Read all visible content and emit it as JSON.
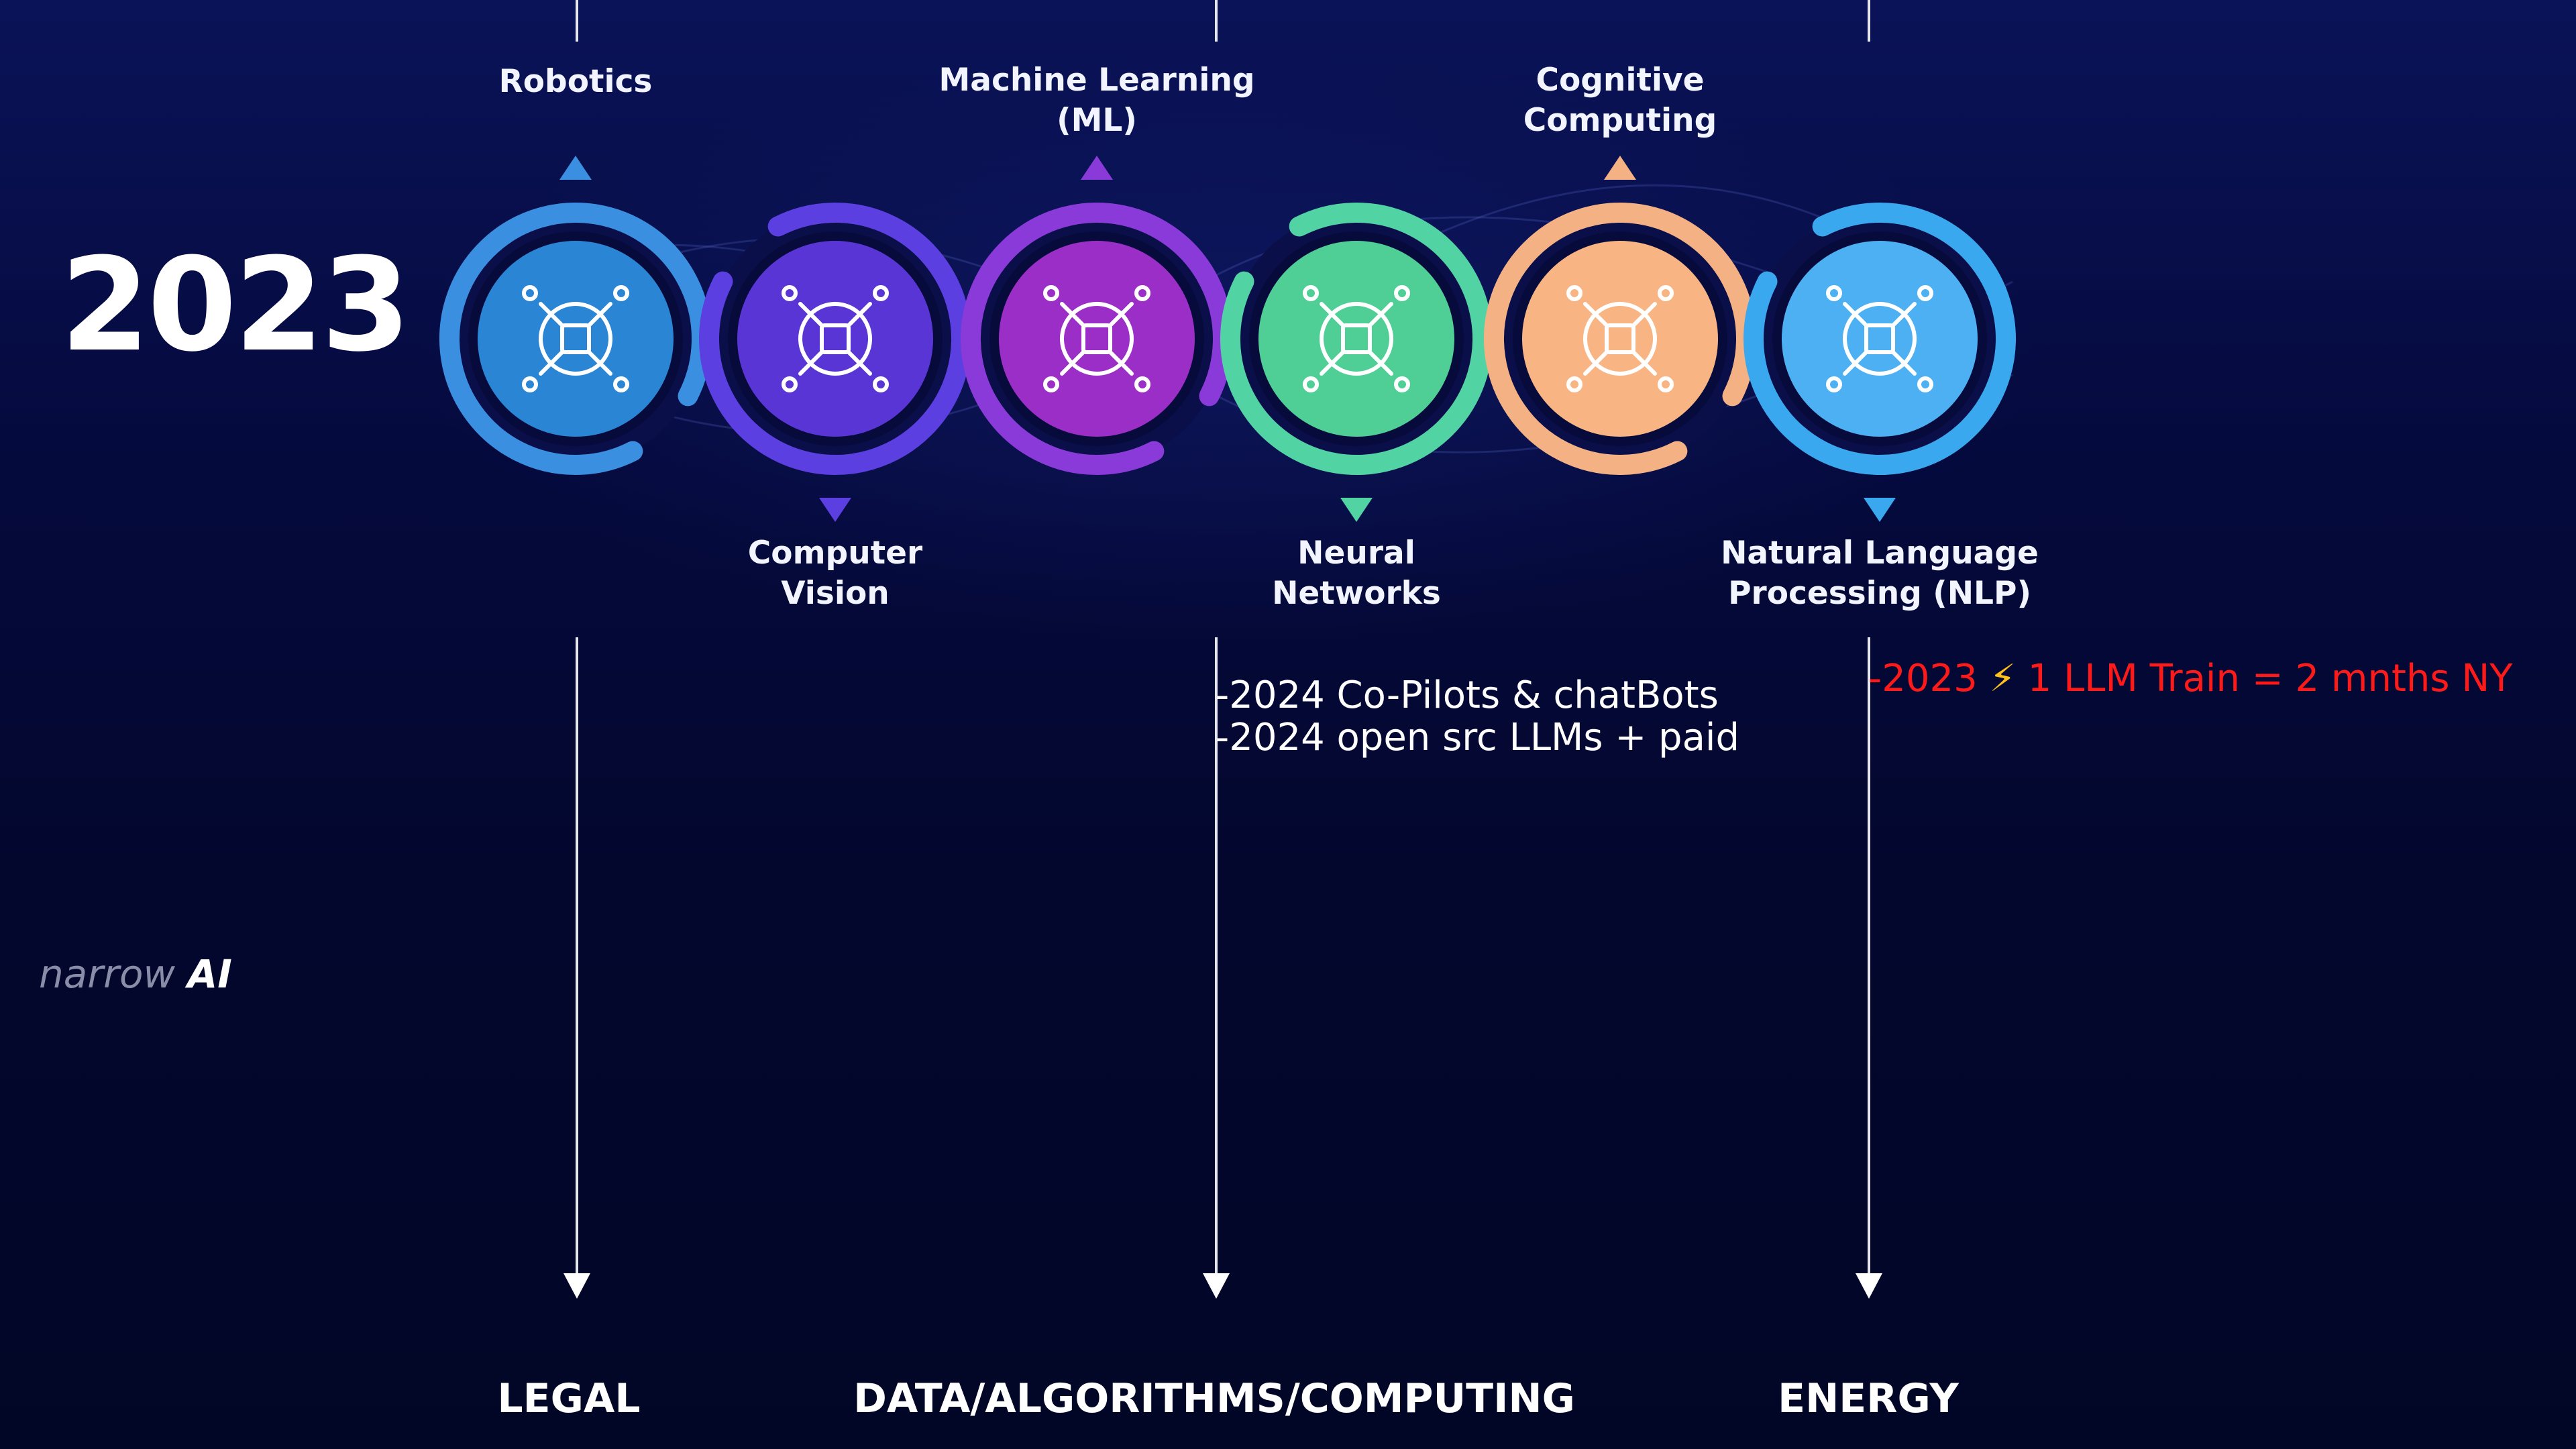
{
  "year": "2023",
  "stages": [
    {
      "label_lines": [
        "Robotics"
      ],
      "position": "top",
      "ring_color": "#3a8fe0",
      "fill_color": "#2a86d4",
      "icon": "head-gear-chip-icon"
    },
    {
      "label_lines": [
        "Computer",
        "Vision"
      ],
      "position": "bottom",
      "ring_color": "#5b3fe0",
      "fill_color": "#5a35d6",
      "icon": "eye-chip-icon"
    },
    {
      "label_lines": [
        "Machine Learning",
        "(ML)"
      ],
      "position": "top",
      "ring_color": "#8a3ad8",
      "fill_color": "#9b2ec6",
      "icon": "brain-gear-icon"
    },
    {
      "label_lines": [
        "Neural",
        "Networks"
      ],
      "position": "bottom",
      "ring_color": "#52d3a4",
      "fill_color": "#4fcf96",
      "icon": "network-nodes-icon"
    },
    {
      "label_lines": [
        "Cognitive",
        "Computing"
      ],
      "position": "top",
      "ring_color": "#f4b183",
      "fill_color": "#f8b482",
      "icon": "brain-mesh-icon"
    },
    {
      "label_lines": [
        "Natural Language",
        "Processing (NLP)"
      ],
      "position": "bottom",
      "ring_color": "#3aa8ee",
      "fill_color": "#4cb0f2",
      "icon": "microphone-wave-icon"
    }
  ],
  "notes": {
    "data_1": "-2024 Co-Pilots & chatBots",
    "data_2": "-2024 open src LLMs + paid",
    "energy_prefix": "-2023 ",
    "energy_emoji": "⚡",
    "energy_rest": " 1 LLM Train = 2 mnths NY"
  },
  "narrow_ai": {
    "word1": "narrow",
    "word2": "AI"
  },
  "bottom_labels": {
    "legal": "LEGAL",
    "data": "DATA/ALGORITHMS/COMPUTING",
    "energy": "ENERGY"
  },
  "colors": {
    "energy_note": "#ff1a1a",
    "lightning": "#ffc21a"
  }
}
